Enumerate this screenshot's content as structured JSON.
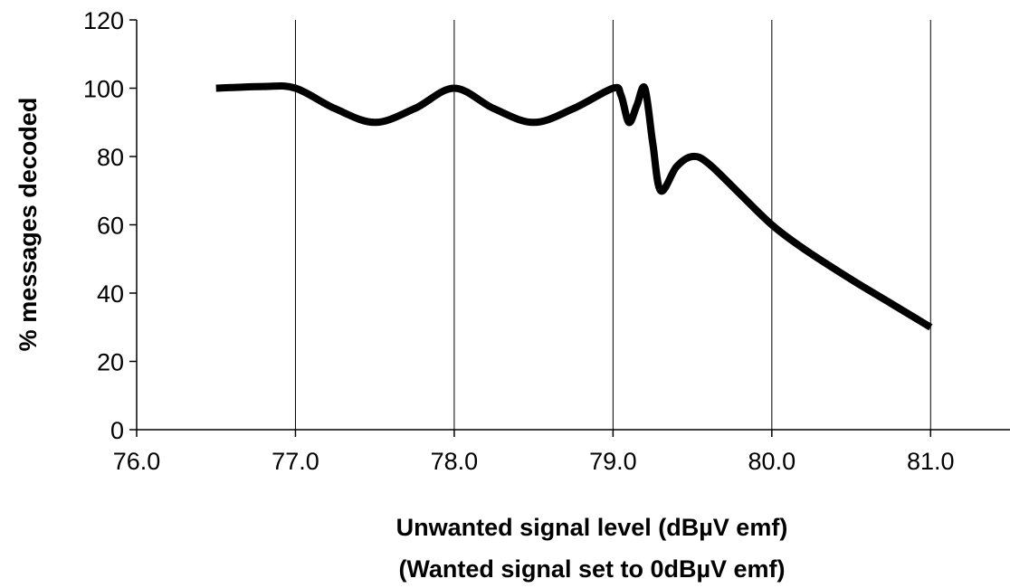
{
  "chart_data": {
    "type": "line",
    "title": "",
    "xlabel": "Unwanted signal level (dBµV emf)",
    "xlabel2": "(Wanted signal set to 0dBµV emf)",
    "ylabel": "% messages decoded",
    "xlim": [
      76.0,
      81.5
    ],
    "ylim": [
      0,
      120
    ],
    "x_ticks": [
      "76.0",
      "77.0",
      "78.0",
      "79.0",
      "80.0",
      "81.0"
    ],
    "y_ticks": [
      "0",
      "20",
      "40",
      "60",
      "80",
      "100",
      "120"
    ],
    "grid": "vertical",
    "line_color": "#000000",
    "series": [
      {
        "x": [
          76.5,
          76.8,
          77.0,
          77.25,
          77.5,
          77.75,
          78.0,
          78.25,
          78.5,
          78.75,
          79.0,
          79.05,
          79.1,
          79.15,
          79.2,
          79.25,
          79.3,
          79.4,
          79.5,
          79.6,
          79.8,
          80.0,
          80.2,
          80.5,
          80.75,
          81.0
        ],
        "values": [
          100,
          100.5,
          100,
          94,
          90,
          94,
          100,
          94,
          90,
          94,
          100,
          98,
          90,
          95,
          100,
          84,
          70,
          77,
          80,
          78,
          69,
          60,
          53,
          44,
          37,
          30
        ]
      }
    ]
  }
}
